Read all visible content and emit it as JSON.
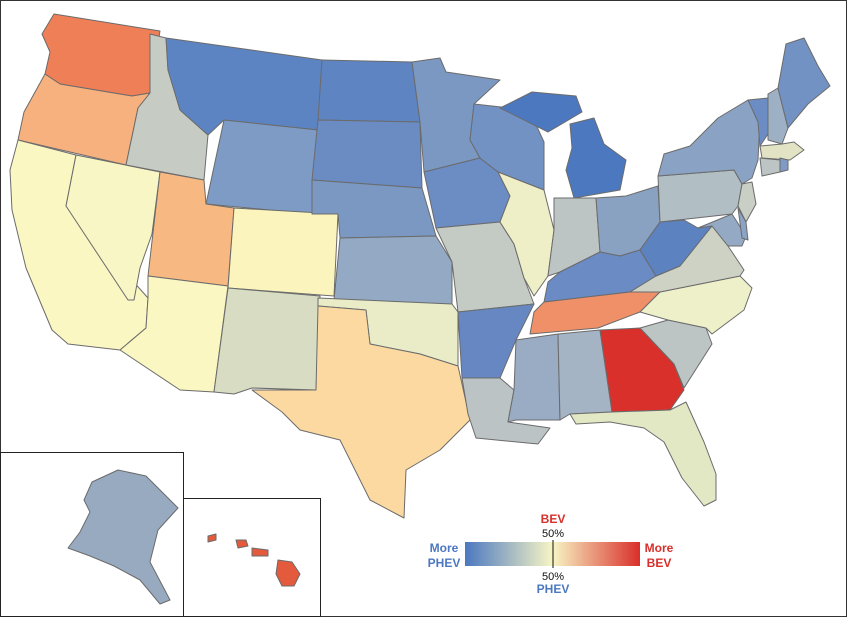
{
  "legend": {
    "left_line1": "More",
    "left_line2": "PHEV",
    "right_line1": "More",
    "right_line2": "BEV",
    "top_label": "BEV",
    "top_pct": "50%",
    "bottom_pct": "50%",
    "bottom_label": "PHEV",
    "colors": {
      "phev": "#4b78c0",
      "mid": "#f7f5c4",
      "bev": "#d92f2a"
    }
  },
  "map": {
    "states": [
      {
        "name": "Washington",
        "color": "#ef7f57"
      },
      {
        "name": "Oregon",
        "color": "#f7b17e"
      },
      {
        "name": "California",
        "color": "#fbf7c2"
      },
      {
        "name": "Nevada",
        "color": "#f8f6c4"
      },
      {
        "name": "Idaho",
        "color": "#c6ccc4"
      },
      {
        "name": "Montana",
        "color": "#5d84c2"
      },
      {
        "name": "Wyoming",
        "color": "#7d9bc4"
      },
      {
        "name": "Utah",
        "color": "#f7b981"
      },
      {
        "name": "Arizona",
        "color": "#fbf7c2"
      },
      {
        "name": "Colorado",
        "color": "#fbf5bd"
      },
      {
        "name": "New Mexico",
        "color": "#d8dcc2"
      },
      {
        "name": "North Dakota",
        "color": "#5e84c2"
      },
      {
        "name": "South Dakota",
        "color": "#6a8cc2"
      },
      {
        "name": "Nebraska",
        "color": "#7b98c2"
      },
      {
        "name": "Kansas",
        "color": "#93a9c4"
      },
      {
        "name": "Oklahoma",
        "color": "#e9ecc7"
      },
      {
        "name": "Texas",
        "color": "#fbd9a1"
      },
      {
        "name": "Minnesota",
        "color": "#7b98c2"
      },
      {
        "name": "Iowa",
        "color": "#6c8dc4"
      },
      {
        "name": "Missouri",
        "color": "#c4cbc4"
      },
      {
        "name": "Arkansas",
        "color": "#6687c2"
      },
      {
        "name": "Louisiana",
        "color": "#bbc3c4"
      },
      {
        "name": "Wisconsin",
        "color": "#7392c4"
      },
      {
        "name": "Illinois",
        "color": "#eeeec7"
      },
      {
        "name": "Michigan",
        "color": "#4c78c0"
      },
      {
        "name": "Indiana",
        "color": "#bcc4c4"
      },
      {
        "name": "Ohio",
        "color": "#8aa2c2"
      },
      {
        "name": "Kentucky",
        "color": "#6a8bc4"
      },
      {
        "name": "Tennessee",
        "color": "#f09068"
      },
      {
        "name": "Mississippi",
        "color": "#99acc4"
      },
      {
        "name": "Alabama",
        "color": "#a4b4c4"
      },
      {
        "name": "Georgia",
        "color": "#d9302b"
      },
      {
        "name": "Florida",
        "color": "#e2e7c4"
      },
      {
        "name": "South Carolina",
        "color": "#bcc4c4"
      },
      {
        "name": "North Carolina",
        "color": "#eef0ca"
      },
      {
        "name": "Virginia",
        "color": "#cdd2c4"
      },
      {
        "name": "West Virginia",
        "color": "#5c82c0"
      },
      {
        "name": "Pennsylvania",
        "color": "#b1bec4"
      },
      {
        "name": "New York",
        "color": "#8aa2c4"
      },
      {
        "name": "New Jersey",
        "color": "#c9cfc4"
      },
      {
        "name": "Maryland",
        "color": "#94aac4"
      },
      {
        "name": "Delaware",
        "color": "#8ba3c4"
      },
      {
        "name": "Vermont",
        "color": "#6c8dc4"
      },
      {
        "name": "New Hampshire",
        "color": "#9db0c4"
      },
      {
        "name": "Maine",
        "color": "#7392c4"
      },
      {
        "name": "Massachusetts",
        "color": "#e1e3c4"
      },
      {
        "name": "Connecticut",
        "color": "#bcc4c4"
      },
      {
        "name": "Rhode Island",
        "color": "#7f9ac4"
      },
      {
        "name": "Alaska",
        "color": "#98aac0"
      },
      {
        "name": "Hawaii",
        "color": "#e35a3c"
      }
    ]
  }
}
